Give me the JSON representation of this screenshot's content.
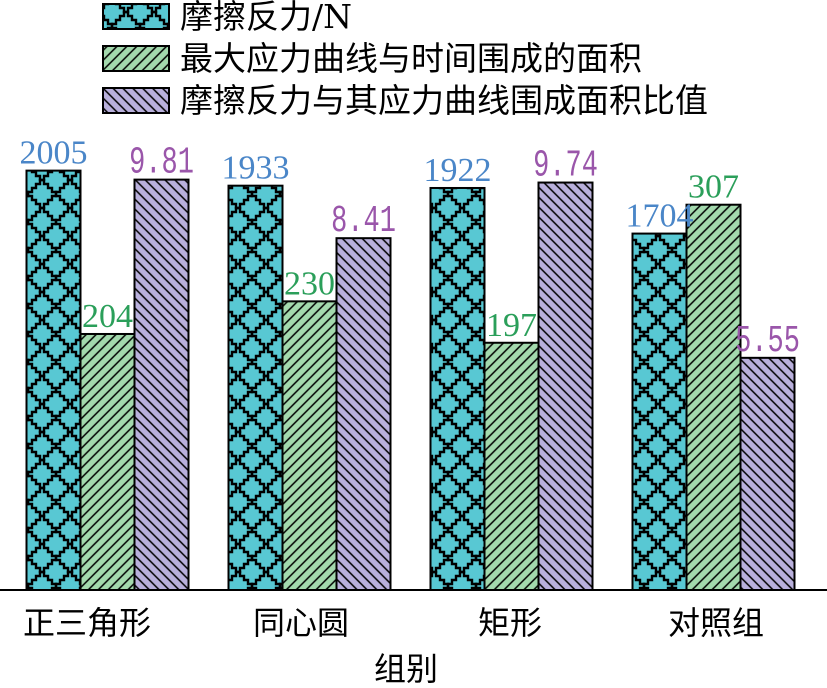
{
  "chart_data": {
    "type": "bar",
    "categories": [
      "正三角形",
      "同心圆",
      "矩形",
      "对照组"
    ],
    "xlabel": "组别",
    "legend": "top-left",
    "grid": false,
    "y_axis_visible": false,
    "data_labels": true,
    "series": [
      {
        "name": "摩擦反力/N",
        "values": [
          2005,
          1933,
          1922,
          1704
        ],
        "ylim": [
          0,
          2400
        ],
        "color": "#58c8d3",
        "pattern": "stepped-crosshatch",
        "label_color": "#4a86c8"
      },
      {
        "name": "最大应力曲线与时间围成的面积",
        "values": [
          204,
          230,
          197,
          307
        ],
        "ylim": [
          0,
          400
        ],
        "color": "#a3d9ad",
        "pattern": "forward-diagonal",
        "label_color": "#2b9f5a"
      },
      {
        "name": "摩擦反力与其应力曲线围成面积比值",
        "values": [
          9.81,
          8.41,
          9.74,
          5.55
        ],
        "ylim": [
          0,
          12
        ],
        "color": "#b9b0dc",
        "pattern": "backward-diagonal",
        "label_color": "#9a56aa"
      }
    ]
  }
}
